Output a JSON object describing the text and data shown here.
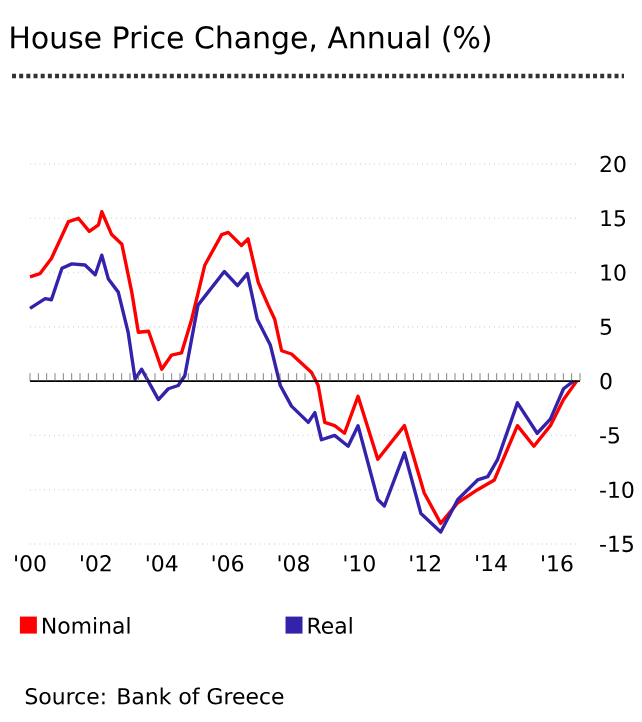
{
  "chart_data": {
    "type": "line",
    "title": "House Price Change, Annual (%)",
    "annotations": [
      "Source: Bank of Greece"
    ],
    "xlim": [
      2000,
      2016.7
    ],
    "ylim": [
      -15,
      20
    ],
    "xticks": [
      {
        "value": 2000,
        "label": "'00"
      },
      {
        "value": 2002,
        "label": "'02"
      },
      {
        "value": 2004,
        "label": "'04"
      },
      {
        "value": 2006,
        "label": "'06"
      },
      {
        "value": 2008,
        "label": "'08"
      },
      {
        "value": 2010,
        "label": "'10"
      },
      {
        "value": 2012,
        "label": "'12"
      },
      {
        "value": 2014,
        "label": "'14"
      },
      {
        "value": 2016,
        "label": "'16"
      }
    ],
    "yticks": [
      -15,
      -10,
      -5,
      0,
      5,
      10,
      15,
      20
    ],
    "grid": "y",
    "legend": "bottom",
    "series": [
      {
        "name": "Nominal",
        "color": "#ff0000",
        "x": [
          2000.0,
          2000.3,
          2000.65,
          2001.17,
          2001.47,
          2001.8,
          2002.08,
          2002.18,
          2002.48,
          2002.79,
          2003.09,
          2003.29,
          2003.6,
          2004.0,
          2004.3,
          2004.6,
          2004.91,
          2005.31,
          2005.82,
          2006.02,
          2006.42,
          2006.62,
          2006.93,
          2007.23,
          2007.43,
          2007.64,
          2007.94,
          2008.55,
          2008.75,
          2008.95,
          2009.25,
          2009.55,
          2009.96,
          2010.56,
          2011.37,
          2011.97,
          2012.47,
          2012.99,
          2013.59,
          2014.1,
          2014.8,
          2015.3,
          2015.8,
          2016.2,
          2016.6
        ],
        "values": [
          9.6,
          9.9,
          11.3,
          14.7,
          15,
          13.8,
          14.4,
          15.6,
          13.5,
          12.6,
          8.2,
          4.5,
          4.6,
          1.1,
          2.4,
          2.6,
          5.7,
          10.7,
          13.5,
          13.7,
          12.5,
          13.1,
          9.1,
          7.0,
          5.7,
          2.8,
          2.5,
          0.8,
          -0.4,
          -3.8,
          -4.1,
          -4.8,
          -1.4,
          -7.2,
          -4.1,
          -10.3,
          -13.1,
          -11.2,
          -10,
          -9.1,
          -4.1,
          -6,
          -4.1,
          -1.7,
          0
        ]
      },
      {
        "name": "Real",
        "color": "#3322aa",
        "x": [
          2000.0,
          2000.46,
          2000.65,
          2000.97,
          2001.27,
          2001.67,
          2001.98,
          2002.18,
          2002.38,
          2002.68,
          2002.98,
          2003.19,
          2003.39,
          2003.9,
          2004.2,
          2004.5,
          2004.7,
          2005.1,
          2005.9,
          2006.3,
          2006.6,
          2006.9,
          2007.3,
          2007.6,
          2007.94,
          2008.45,
          2008.65,
          2008.85,
          2009.25,
          2009.66,
          2009.96,
          2010.56,
          2010.76,
          2011.37,
          2011.87,
          2012.47,
          2012.99,
          2013.59,
          2013.9,
          2014.2,
          2014.8,
          2015.4,
          2015.8,
          2016.2,
          2016.5
        ],
        "values": [
          6.7,
          7.6,
          7.5,
          10.4,
          10.8,
          10.7,
          9.8,
          11.6,
          9.4,
          8.2,
          4.5,
          0.2,
          1.1,
          -1.7,
          -0.7,
          -0.4,
          0.5,
          7.0,
          10.1,
          8.8,
          9.9,
          5.7,
          3.3,
          -0.4,
          -2.3,
          -3.8,
          -2.9,
          -5.4,
          -5.0,
          -6.0,
          -4.1,
          -10.9,
          -11.5,
          -6.6,
          -12.2,
          -13.9,
          -10.9,
          -9.1,
          -8.8,
          -7.2,
          -2.0,
          -4.8,
          -3.5,
          -0.7,
          0
        ]
      }
    ]
  }
}
